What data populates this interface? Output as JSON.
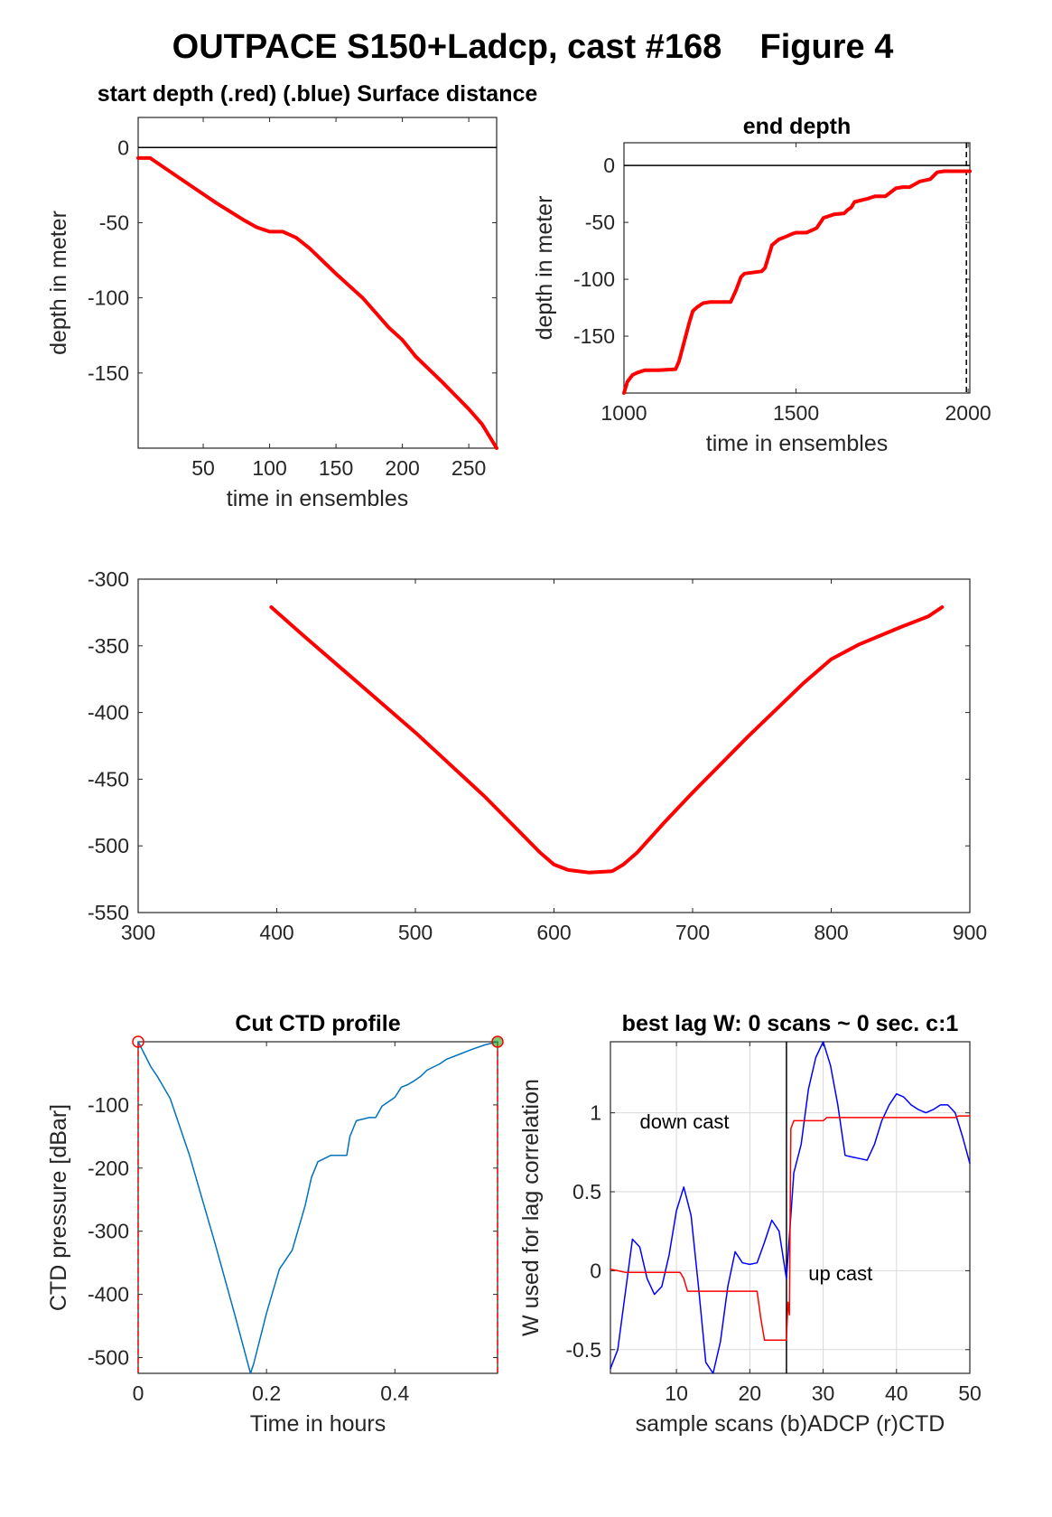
{
  "figure_title": "OUTPACE S150+Ladcp, cast #168    Figure 4",
  "colors": {
    "red": "#ff0000",
    "blue": "#0000ff",
    "ctd": "#0072bd",
    "grid": "#d9d9d9",
    "axis": "#262626"
  },
  "chart_data": [
    {
      "id": "start-depth",
      "type": "line",
      "title": "start depth (.red) (.blue) Surface distance",
      "xlabel": "time in ensembles",
      "ylabel": "depth in meter",
      "xlim": [
        1,
        271
      ],
      "ylim": [
        -200,
        20
      ],
      "xticks": [
        50,
        100,
        150,
        200,
        250
      ],
      "yticks": [
        0,
        -50,
        -100,
        -150
      ],
      "grid": false,
      "hlines": [
        0
      ],
      "series": [
        {
          "color": "red",
          "width": 4,
          "x": [
            1,
            10,
            20,
            40,
            60,
            80,
            90,
            100,
            110,
            120,
            130,
            150,
            170,
            190,
            200,
            210,
            230,
            250,
            260,
            271
          ],
          "y": [
            -7,
            -7,
            -13,
            -25,
            -37,
            -48,
            -53,
            -56,
            -56,
            -60,
            -67,
            -84,
            -100,
            -120,
            -128,
            -139,
            -156,
            -174,
            -184,
            -200
          ]
        }
      ]
    },
    {
      "id": "end-depth",
      "type": "line",
      "title": "end depth",
      "xlabel": "time in ensembles",
      "ylabel": "depth in meter",
      "xlim": [
        1000,
        2005
      ],
      "ylim": [
        -200,
        20
      ],
      "xticks": [
        1000,
        1500,
        2000
      ],
      "yticks": [
        0,
        -50,
        -100,
        -150
      ],
      "grid": false,
      "hlines": [
        0
      ],
      "vlines_dashed": [
        1995
      ],
      "series": [
        {
          "color": "red",
          "width": 4,
          "x": [
            1000,
            1010,
            1025,
            1040,
            1060,
            1080,
            1100,
            1150,
            1160,
            1175,
            1190,
            1200,
            1215,
            1230,
            1250,
            1270,
            1310,
            1325,
            1340,
            1350,
            1400,
            1410,
            1420,
            1430,
            1450,
            1475,
            1490,
            1500,
            1530,
            1560,
            1580,
            1610,
            1640,
            1650,
            1660,
            1670,
            1710,
            1720,
            1730,
            1760,
            1790,
            1810,
            1830,
            1860,
            1890,
            1910,
            1930,
            1960,
            1990,
            2005
          ],
          "y": [
            -200,
            -190,
            -184,
            -182,
            -180,
            -180,
            -180,
            -179,
            -172,
            -155,
            -138,
            -128,
            -124,
            -121,
            -120,
            -120,
            -120,
            -110,
            -98,
            -95,
            -93,
            -90,
            -80,
            -70,
            -65,
            -62,
            -60,
            -59,
            -59,
            -55,
            -46,
            -43,
            -42,
            -39,
            -37,
            -32,
            -29,
            -28,
            -27,
            -27,
            -20,
            -19,
            -19,
            -14,
            -12,
            -6,
            -5,
            -5,
            -5,
            -5
          ]
        }
      ]
    },
    {
      "id": "middle",
      "type": "line",
      "title": "",
      "xlabel": "",
      "ylabel": "",
      "xlim": [
        300,
        900
      ],
      "ylim": [
        -550,
        -300
      ],
      "xticks": [
        300,
        400,
        500,
        600,
        700,
        800,
        900
      ],
      "yticks": [
        -300,
        -350,
        -400,
        -450,
        -500,
        -550
      ],
      "grid": false,
      "hlines": [],
      "series": [
        {
          "color": "red",
          "width": 4,
          "x": [
            396,
            420,
            450,
            500,
            550,
            590,
            600,
            610,
            625,
            642,
            650,
            660,
            680,
            700,
            740,
            780,
            800,
            820,
            850,
            870,
            880
          ],
          "y": [
            -321,
            -343,
            -370,
            -415,
            -463,
            -505,
            -514,
            -518,
            -520,
            -519,
            -514,
            -505,
            -482,
            -460,
            -418,
            -378,
            -360,
            -349,
            -336,
            -328,
            -321
          ]
        }
      ]
    },
    {
      "id": "cut-ctd",
      "type": "line",
      "title": "Cut CTD profile",
      "xlabel": "Time in hours",
      "ylabel": "CTD pressure [dBar]",
      "xlim": [
        0,
        0.56
      ],
      "ylim": [
        -525,
        0
      ],
      "xticks": [
        0,
        0.2,
        0.4
      ],
      "yticks": [
        -100,
        -200,
        -300,
        -400,
        -500
      ],
      "grid": false,
      "hlines": [],
      "vlines_dashed": [
        0,
        0.56
      ],
      "markers": [
        {
          "x": 0,
          "y": 0,
          "stroke": "red"
        },
        {
          "x": 0.56,
          "y": 0,
          "stroke": "red",
          "fill": "#22aa22"
        }
      ],
      "series": [
        {
          "color": "ctd",
          "width": 1.5,
          "x": [
            0,
            0.01,
            0.02,
            0.03,
            0.05,
            0.08,
            0.12,
            0.15,
            0.175,
            0.18,
            0.19,
            0.2,
            0.22,
            0.24,
            0.26,
            0.27,
            0.28,
            0.3,
            0.31,
            0.325,
            0.33,
            0.34,
            0.36,
            0.37,
            0.38,
            0.39,
            0.4,
            0.41,
            0.42,
            0.43,
            0.44,
            0.45,
            0.46,
            0.47,
            0.48,
            0.5,
            0.52,
            0.54,
            0.56
          ],
          "y": [
            0,
            -20,
            -40,
            -55,
            -90,
            -180,
            -320,
            -430,
            -525,
            -510,
            -470,
            -430,
            -360,
            -330,
            -260,
            -215,
            -190,
            -180,
            -180,
            -180,
            -150,
            -125,
            -120,
            -120,
            -102,
            -95,
            -88,
            -72,
            -68,
            -62,
            -55,
            -45,
            -40,
            -35,
            -28,
            -20,
            -12,
            -5,
            0
          ]
        }
      ]
    },
    {
      "id": "best-lag",
      "type": "line",
      "title": "best lag W: 0 scans ~ 0 sec.  c:1",
      "xlabel": "sample scans (b)ADCP (r)CTD",
      "ylabel": "W used for lag correlation",
      "xlim": [
        1,
        50
      ],
      "ylim": [
        -0.65,
        1.45
      ],
      "xticks": [
        10,
        20,
        30,
        40,
        50
      ],
      "yticks": [
        -0.5,
        0,
        0.5,
        1
      ],
      "grid": true,
      "vlines_solid": [
        25
      ],
      "annotations": [
        {
          "text": "down cast",
          "x": 5,
          "y": 0.9
        },
        {
          "text": "up cast",
          "x": 28,
          "y": -0.06
        }
      ],
      "series": [
        {
          "color": "blue",
          "width": 1.5,
          "x": [
            1,
            2,
            4,
            5,
            6,
            7,
            8,
            9,
            10,
            11,
            12,
            13,
            14,
            15,
            16,
            17,
            18,
            19,
            20,
            21,
            22,
            23,
            24,
            25,
            26,
            27,
            28,
            29,
            30,
            31,
            32,
            33,
            34,
            35,
            36,
            37,
            38,
            39,
            40,
            41,
            42,
            43,
            44,
            45,
            46,
            47,
            48,
            49,
            50
          ],
          "y": [
            -0.62,
            -0.5,
            0.2,
            0.15,
            -0.05,
            -0.15,
            -0.1,
            0.1,
            0.38,
            0.53,
            0.35,
            -0.1,
            -0.58,
            -0.65,
            -0.45,
            -0.1,
            0.12,
            0.05,
            0.04,
            0.05,
            0.18,
            0.32,
            0.25,
            -0.05,
            0.62,
            0.8,
            1.15,
            1.35,
            1.45,
            1.3,
            1.05,
            0.73,
            0.72,
            0.71,
            0.7,
            0.8,
            0.95,
            1.05,
            1.12,
            1.1,
            1.05,
            1.02,
            1.0,
            1.02,
            1.05,
            1.05,
            1.0,
            0.85,
            0.68
          ]
        },
        {
          "color": "red",
          "width": 1.5,
          "x": [
            1,
            2,
            3,
            10.5,
            11,
            11.5,
            12,
            21,
            21.5,
            22,
            25,
            25.2,
            25.4,
            25.6,
            26,
            30,
            30.5,
            48,
            48.5,
            50
          ],
          "y": [
            0.01,
            0.0,
            -0.01,
            -0.01,
            -0.05,
            -0.13,
            -0.13,
            -0.13,
            -0.3,
            -0.44,
            -0.44,
            -0.2,
            -0.28,
            0.9,
            0.95,
            0.95,
            0.97,
            0.97,
            0.98,
            0.98
          ]
        }
      ]
    }
  ]
}
